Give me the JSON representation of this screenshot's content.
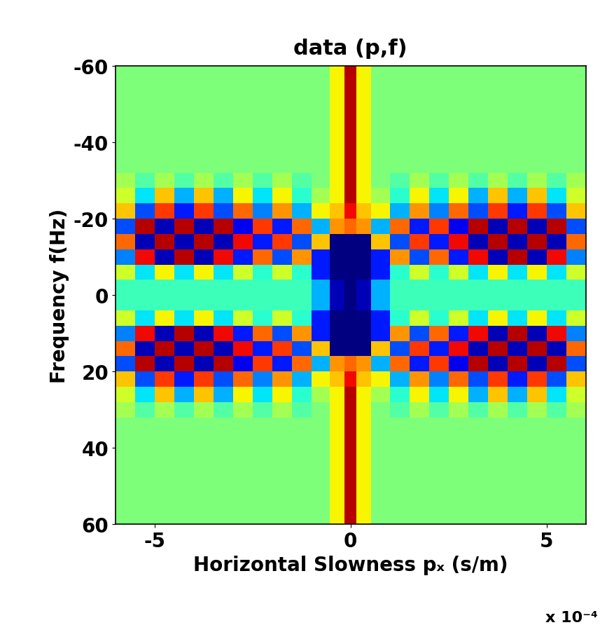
{
  "chart_data": {
    "type": "heatmap",
    "title": "data (p,f)",
    "x_label": "Horizontal Slowness pₓ (s/m)",
    "y_label": "Frequency f(Hz)",
    "annotations": [
      "x 10⁻⁴"
    ],
    "color": "jet",
    "color_range": [
      -1,
      1
    ],
    "xlim": [
      -6,
      6
    ],
    "xticks": [
      -5,
      0,
      5
    ],
    "ylim": [
      60,
      -60
    ],
    "yticks": [
      -60,
      -40,
      -20,
      0,
      20,
      40,
      60
    ],
    "x": [
      -5.75,
      -5.25,
      -4.75,
      -4.25,
      -3.75,
      -3.25,
      -2.75,
      -2.25,
      -1.75,
      -1.25,
      -0.75,
      -0.3,
      0,
      0.3,
      0.75,
      1.25,
      1.75,
      2.25,
      2.75,
      3.25,
      3.75,
      4.25,
      4.75,
      5.25,
      5.75
    ],
    "y": [
      -58,
      -54,
      -50,
      -46,
      -42,
      -38,
      -34,
      -30,
      -26,
      -22,
      -18,
      -14,
      -10,
      -6,
      -2,
      2,
      6,
      10,
      14,
      18,
      22,
      26,
      30,
      34,
      38,
      42,
      46,
      50,
      54,
      58
    ],
    "cells": [
      [
        0,
        0,
        0,
        0,
        0,
        0,
        0,
        0,
        0,
        0,
        0,
        0.3,
        0.9,
        0.3,
        0,
        0,
        0,
        0,
        0,
        0,
        0,
        0,
        0,
        0,
        0
      ],
      [
        0,
        0,
        0,
        0,
        0,
        0,
        0,
        0,
        0,
        0,
        0,
        0.3,
        0.9,
        0.3,
        0,
        0,
        0,
        0,
        0,
        0,
        0,
        0,
        0,
        0,
        0
      ],
      [
        0,
        0,
        0,
        0,
        0,
        0,
        0,
        0,
        0,
        0,
        0,
        0.3,
        0.9,
        0.3,
        0,
        0,
        0,
        0,
        0,
        0,
        0,
        0,
        0,
        0,
        0
      ],
      [
        0,
        0,
        0,
        0,
        0,
        0,
        0,
        0,
        0,
        0,
        0,
        0.3,
        0.9,
        0.3,
        0,
        0,
        0,
        0,
        0,
        0,
        0,
        0,
        0,
        0,
        0
      ],
      [
        0,
        0,
        0,
        0,
        0,
        0,
        0,
        0,
        0,
        0,
        0,
        0.3,
        0.9,
        0.3,
        0,
        0,
        0,
        0,
        0,
        0,
        0,
        0,
        0,
        0,
        0
      ],
      [
        0,
        0,
        0,
        0,
        0,
        0,
        0,
        0,
        0,
        0,
        0,
        0.3,
        0.9,
        0.3,
        0,
        0,
        0,
        0,
        0,
        0,
        0,
        0,
        0,
        0,
        0
      ],
      [
        0,
        0,
        0,
        0,
        0,
        0,
        0,
        0,
        0,
        0,
        0,
        0.3,
        0.9,
        0.3,
        0,
        0,
        0,
        0,
        0,
        0,
        0,
        0,
        0,
        0,
        0
      ],
      [
        0.1,
        -0.1,
        0.1,
        -0.1,
        0.1,
        -0.1,
        0.1,
        -0.1,
        0.1,
        -0.1,
        0,
        0.3,
        0.9,
        0.3,
        0,
        -0.1,
        0.1,
        -0.1,
        0.1,
        -0.1,
        0.1,
        -0.1,
        0.1,
        -0.1,
        0.1
      ],
      [
        0.2,
        -0.3,
        0.4,
        -0.4,
        0.4,
        -0.4,
        0.3,
        -0.3,
        0.3,
        -0.2,
        0.1,
        0.3,
        0.9,
        0.3,
        0.1,
        -0.2,
        0.3,
        -0.3,
        0.3,
        -0.4,
        0.4,
        -0.4,
        0.4,
        -0.3,
        0.2
      ],
      [
        0.4,
        -0.6,
        0.7,
        -0.7,
        0.7,
        -0.6,
        0.6,
        -0.5,
        0.5,
        -0.4,
        0.3,
        0.4,
        0.8,
        0.4,
        0.3,
        -0.4,
        0.5,
        -0.5,
        0.6,
        -0.6,
        0.7,
        -0.7,
        0.7,
        -0.6,
        0.4
      ],
      [
        -0.6,
        0.9,
        -0.9,
        0.9,
        -0.9,
        0.9,
        -0.8,
        0.7,
        -0.7,
        0.6,
        -0.4,
        0.5,
        0.6,
        0.5,
        -0.4,
        0.6,
        -0.7,
        0.7,
        -0.8,
        0.9,
        -0.9,
        0.9,
        -0.9,
        0.9,
        -0.6
      ],
      [
        0.6,
        -0.9,
        0.9,
        -0.9,
        0.9,
        -0.9,
        0.8,
        -0.7,
        0.7,
        -0.6,
        0.4,
        -1,
        -1,
        -1,
        0.4,
        -0.6,
        0.7,
        -0.7,
        0.8,
        -0.9,
        0.9,
        -0.9,
        0.9,
        -0.9,
        0.6
      ],
      [
        -0.5,
        0.8,
        -0.9,
        0.9,
        -0.9,
        0.8,
        -0.7,
        0.6,
        -0.6,
        0.5,
        -0.7,
        -1,
        -1,
        -1,
        -0.7,
        0.5,
        -0.6,
        0.6,
        -0.7,
        0.8,
        -0.9,
        0.9,
        -0.9,
        0.8,
        -0.5
      ],
      [
        0.2,
        -0.3,
        0.3,
        -0.3,
        0.3,
        -0.3,
        0.2,
        -0.2,
        0.2,
        -0.2,
        -0.7,
        -1,
        -1,
        -1,
        -0.7,
        -0.2,
        0.2,
        -0.2,
        0.2,
        -0.3,
        0.3,
        -0.3,
        0.3,
        -0.3,
        0.2
      ],
      [
        -0.15,
        -0.15,
        -0.15,
        -0.15,
        -0.15,
        -0.15,
        -0.15,
        -0.15,
        -0.15,
        -0.15,
        -0.4,
        -0.9,
        -1,
        -0.9,
        -0.4,
        -0.15,
        -0.15,
        -0.15,
        -0.15,
        -0.15,
        -0.15,
        -0.15,
        -0.15,
        -0.15,
        -0.15
      ],
      [
        -0.15,
        -0.15,
        -0.15,
        -0.15,
        -0.15,
        -0.15,
        -0.15,
        -0.15,
        -0.15,
        -0.15,
        -0.4,
        -0.9,
        -1,
        -0.9,
        -0.4,
        -0.15,
        -0.15,
        -0.15,
        -0.15,
        -0.15,
        -0.15,
        -0.15,
        -0.15,
        -0.15,
        -0.15
      ],
      [
        0.2,
        -0.3,
        0.3,
        -0.3,
        0.3,
        -0.3,
        0.2,
        -0.2,
        0.2,
        -0.2,
        -0.7,
        -1,
        -1,
        -1,
        -0.7,
        -0.2,
        0.2,
        -0.2,
        0.2,
        -0.3,
        0.3,
        -0.3,
        0.3,
        -0.3,
        0.2
      ],
      [
        -0.5,
        0.8,
        -0.9,
        0.9,
        -0.9,
        0.8,
        -0.7,
        0.6,
        -0.6,
        0.5,
        -0.7,
        -1,
        -1,
        -1,
        -0.7,
        0.5,
        -0.6,
        0.6,
        -0.7,
        0.8,
        -0.9,
        0.9,
        -0.9,
        0.8,
        -0.5
      ],
      [
        0.6,
        -0.9,
        0.9,
        -0.9,
        0.9,
        -0.9,
        0.8,
        -0.7,
        0.7,
        -0.6,
        0.4,
        -1,
        -1,
        -1,
        0.4,
        -0.6,
        0.7,
        -0.7,
        0.8,
        -0.9,
        0.9,
        -0.9,
        0.9,
        -0.9,
        0.6
      ],
      [
        -0.6,
        0.9,
        -0.9,
        0.9,
        -0.9,
        0.9,
        -0.8,
        0.7,
        -0.7,
        0.6,
        -0.4,
        0.5,
        0.6,
        0.5,
        -0.4,
        0.6,
        -0.7,
        0.7,
        -0.8,
        0.9,
        -0.9,
        0.9,
        -0.9,
        0.9,
        -0.6
      ],
      [
        0.4,
        -0.6,
        0.7,
        -0.7,
        0.7,
        -0.6,
        0.6,
        -0.5,
        0.5,
        -0.4,
        0.3,
        0.4,
        0.8,
        0.4,
        0.3,
        -0.4,
        0.5,
        -0.5,
        0.6,
        -0.6,
        0.7,
        -0.7,
        0.7,
        -0.6,
        0.4
      ],
      [
        0.2,
        -0.3,
        0.4,
        -0.4,
        0.4,
        -0.4,
        0.3,
        -0.3,
        0.3,
        -0.2,
        0.1,
        0.3,
        0.9,
        0.3,
        0.1,
        -0.2,
        0.3,
        -0.3,
        0.3,
        -0.4,
        0.4,
        -0.4,
        0.4,
        -0.3,
        0.2
      ],
      [
        0.1,
        -0.1,
        0.1,
        -0.1,
        0.1,
        -0.1,
        0.1,
        -0.1,
        0.1,
        -0.1,
        0,
        0.3,
        0.9,
        0.3,
        0,
        -0.1,
        0.1,
        -0.1,
        0.1,
        -0.1,
        0.1,
        -0.1,
        0.1,
        -0.1,
        0.1
      ],
      [
        0,
        0,
        0,
        0,
        0,
        0,
        0,
        0,
        0,
        0,
        0,
        0.3,
        0.9,
        0.3,
        0,
        0,
        0,
        0,
        0,
        0,
        0,
        0,
        0,
        0,
        0
      ],
      [
        0,
        0,
        0,
        0,
        0,
        0,
        0,
        0,
        0,
        0,
        0,
        0.3,
        0.9,
        0.3,
        0,
        0,
        0,
        0,
        0,
        0,
        0,
        0,
        0,
        0,
        0
      ],
      [
        0,
        0,
        0,
        0,
        0,
        0,
        0,
        0,
        0,
        0,
        0,
        0.3,
        0.9,
        0.3,
        0,
        0,
        0,
        0,
        0,
        0,
        0,
        0,
        0,
        0,
        0
      ],
      [
        0,
        0,
        0,
        0,
        0,
        0,
        0,
        0,
        0,
        0,
        0,
        0.3,
        0.9,
        0.3,
        0,
        0,
        0,
        0,
        0,
        0,
        0,
        0,
        0,
        0,
        0
      ],
      [
        0,
        0,
        0,
        0,
        0,
        0,
        0,
        0,
        0,
        0,
        0,
        0.3,
        0.9,
        0.3,
        0,
        0,
        0,
        0,
        0,
        0,
        0,
        0,
        0,
        0,
        0
      ],
      [
        0,
        0,
        0,
        0,
        0,
        0,
        0,
        0,
        0,
        0,
        0,
        0.3,
        0.9,
        0.3,
        0,
        0,
        0,
        0,
        0,
        0,
        0,
        0,
        0,
        0,
        0
      ],
      [
        0,
        0,
        0,
        0,
        0,
        0,
        0,
        0,
        0,
        0,
        0,
        0.3,
        0.9,
        0.3,
        0,
        0,
        0,
        0,
        0,
        0,
        0,
        0,
        0,
        0,
        0
      ]
    ]
  }
}
